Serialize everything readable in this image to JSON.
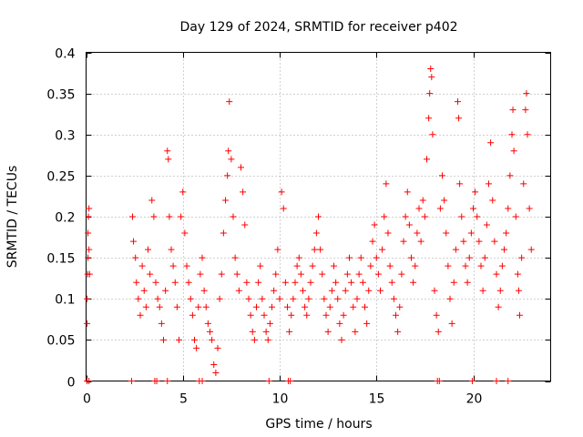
{
  "chart_data": {
    "type": "scatter",
    "title": "Day 129 of 2024, SRMTID for receiver p402",
    "xlabel": "GPS time / hours",
    "ylabel": "SRMTID / TECUs",
    "xlim": [
      0,
      24
    ],
    "ylim": [
      0,
      0.4
    ],
    "x_ticks": [
      0,
      5,
      10,
      15,
      20
    ],
    "x_tick_labels": [
      "0",
      "5",
      "10",
      "15",
      "20"
    ],
    "y_ticks": [
      0,
      0.05,
      0.1,
      0.15,
      0.2,
      0.25,
      0.3,
      0.35,
      0.4
    ],
    "y_tick_labels": [
      "0",
      "0.05",
      "0.1",
      "0.15",
      "0.2",
      "0.25",
      "0.3",
      "0.35",
      "0.4"
    ],
    "grid": true,
    "marker": "+",
    "color": "#ff0000",
    "series": [
      {
        "name": "SRMTID",
        "points": [
          [
            0.05,
            0.07
          ],
          [
            0.05,
            0.1
          ],
          [
            0.08,
            0.13
          ],
          [
            0.1,
            0.15
          ],
          [
            0.1,
            0.18
          ],
          [
            0.12,
            0.2
          ],
          [
            0.15,
            0.21
          ],
          [
            0.15,
            0.16
          ],
          [
            0.18,
            0.13
          ],
          [
            2.4,
            0.2
          ],
          [
            2.45,
            0.17
          ],
          [
            2.55,
            0.15
          ],
          [
            2.6,
            0.12
          ],
          [
            2.7,
            0.1
          ],
          [
            2.8,
            0.08
          ],
          [
            2.9,
            0.14
          ],
          [
            3.0,
            0.11
          ],
          [
            3.1,
            0.09
          ],
          [
            3.2,
            0.16
          ],
          [
            3.3,
            0.13
          ],
          [
            3.4,
            0.22
          ],
          [
            3.5,
            0.2
          ],
          [
            3.6,
            0.12
          ],
          [
            3.7,
            0.1
          ],
          [
            3.8,
            0.09
          ],
          [
            3.9,
            0.07
          ],
          [
            4.0,
            0.05
          ],
          [
            4.1,
            0.11
          ],
          [
            4.2,
            0.28
          ],
          [
            4.25,
            0.27
          ],
          [
            4.3,
            0.2
          ],
          [
            4.4,
            0.16
          ],
          [
            4.5,
            0.14
          ],
          [
            4.6,
            0.12
          ],
          [
            4.7,
            0.09
          ],
          [
            4.8,
            0.05
          ],
          [
            4.9,
            0.2
          ],
          [
            5.0,
            0.23
          ],
          [
            5.1,
            0.18
          ],
          [
            5.2,
            0.14
          ],
          [
            5.3,
            0.12
          ],
          [
            5.4,
            0.1
          ],
          [
            5.5,
            0.08
          ],
          [
            5.6,
            0.05
          ],
          [
            5.7,
            0.04
          ],
          [
            5.8,
            0.09
          ],
          [
            5.9,
            0.13
          ],
          [
            6.0,
            0.15
          ],
          [
            6.1,
            0.11
          ],
          [
            6.2,
            0.09
          ],
          [
            6.3,
            0.07
          ],
          [
            6.4,
            0.06
          ],
          [
            6.5,
            0.05
          ],
          [
            6.6,
            0.02
          ],
          [
            6.7,
            0.01
          ],
          [
            6.8,
            0.04
          ],
          [
            6.9,
            0.1
          ],
          [
            7.0,
            0.13
          ],
          [
            7.1,
            0.18
          ],
          [
            7.2,
            0.22
          ],
          [
            7.3,
            0.25
          ],
          [
            7.35,
            0.28
          ],
          [
            7.4,
            0.34
          ],
          [
            7.5,
            0.27
          ],
          [
            7.6,
            0.2
          ],
          [
            7.7,
            0.15
          ],
          [
            7.8,
            0.13
          ],
          [
            7.9,
            0.11
          ],
          [
            8.0,
            0.26
          ],
          [
            8.1,
            0.23
          ],
          [
            8.2,
            0.19
          ],
          [
            8.3,
            0.12
          ],
          [
            8.4,
            0.1
          ],
          [
            8.5,
            0.08
          ],
          [
            8.6,
            0.06
          ],
          [
            8.7,
            0.05
          ],
          [
            8.8,
            0.09
          ],
          [
            8.9,
            0.12
          ],
          [
            9.0,
            0.14
          ],
          [
            9.1,
            0.1
          ],
          [
            9.2,
            0.08
          ],
          [
            9.3,
            0.06
          ],
          [
            9.4,
            0.05
          ],
          [
            9.5,
            0.07
          ],
          [
            9.6,
            0.09
          ],
          [
            9.7,
            0.11
          ],
          [
            9.8,
            0.13
          ],
          [
            9.9,
            0.16
          ],
          [
            10.0,
            0.1
          ],
          [
            10.1,
            0.23
          ],
          [
            10.2,
            0.21
          ],
          [
            10.3,
            0.12
          ],
          [
            10.4,
            0.09
          ],
          [
            10.5,
            0.06
          ],
          [
            10.6,
            0.08
          ],
          [
            10.7,
            0.1
          ],
          [
            10.8,
            0.12
          ],
          [
            10.9,
            0.14
          ],
          [
            11.0,
            0.15
          ],
          [
            11.1,
            0.13
          ],
          [
            11.2,
            0.11
          ],
          [
            11.3,
            0.09
          ],
          [
            11.4,
            0.08
          ],
          [
            11.5,
            0.1
          ],
          [
            11.6,
            0.12
          ],
          [
            11.7,
            0.14
          ],
          [
            11.8,
            0.16
          ],
          [
            11.9,
            0.18
          ],
          [
            12.0,
            0.2
          ],
          [
            12.1,
            0.16
          ],
          [
            12.2,
            0.13
          ],
          [
            12.3,
            0.1
          ],
          [
            12.4,
            0.08
          ],
          [
            12.5,
            0.06
          ],
          [
            12.6,
            0.09
          ],
          [
            12.7,
            0.11
          ],
          [
            12.8,
            0.14
          ],
          [
            12.9,
            0.12
          ],
          [
            13.0,
            0.1
          ],
          [
            13.1,
            0.07
          ],
          [
            13.2,
            0.05
          ],
          [
            13.3,
            0.08
          ],
          [
            13.4,
            0.11
          ],
          [
            13.5,
            0.13
          ],
          [
            13.6,
            0.15
          ],
          [
            13.7,
            0.12
          ],
          [
            13.8,
            0.09
          ],
          [
            13.9,
            0.06
          ],
          [
            14.0,
            0.1
          ],
          [
            14.1,
            0.13
          ],
          [
            14.2,
            0.15
          ],
          [
            14.3,
            0.12
          ],
          [
            14.4,
            0.09
          ],
          [
            14.5,
            0.07
          ],
          [
            14.6,
            0.11
          ],
          [
            14.7,
            0.14
          ],
          [
            14.8,
            0.17
          ],
          [
            14.9,
            0.19
          ],
          [
            15.0,
            0.15
          ],
          [
            15.1,
            0.13
          ],
          [
            15.2,
            0.11
          ],
          [
            15.3,
            0.16
          ],
          [
            15.4,
            0.2
          ],
          [
            15.5,
            0.24
          ],
          [
            15.6,
            0.18
          ],
          [
            15.7,
            0.14
          ],
          [
            15.8,
            0.12
          ],
          [
            15.9,
            0.1
          ],
          [
            16.0,
            0.08
          ],
          [
            16.1,
            0.06
          ],
          [
            16.2,
            0.09
          ],
          [
            16.3,
            0.13
          ],
          [
            16.4,
            0.17
          ],
          [
            16.5,
            0.2
          ],
          [
            16.6,
            0.23
          ],
          [
            16.7,
            0.19
          ],
          [
            16.8,
            0.15
          ],
          [
            16.9,
            0.12
          ],
          [
            17.0,
            0.14
          ],
          [
            17.1,
            0.18
          ],
          [
            17.2,
            0.21
          ],
          [
            17.3,
            0.17
          ],
          [
            17.4,
            0.22
          ],
          [
            17.5,
            0.2
          ],
          [
            17.6,
            0.27
          ],
          [
            17.7,
            0.32
          ],
          [
            17.75,
            0.35
          ],
          [
            17.8,
            0.38
          ],
          [
            17.85,
            0.37
          ],
          [
            17.9,
            0.3
          ],
          [
            18.0,
            0.11
          ],
          [
            18.1,
            0.08
          ],
          [
            18.2,
            0.06
          ],
          [
            18.3,
            0.21
          ],
          [
            18.4,
            0.25
          ],
          [
            18.5,
            0.22
          ],
          [
            18.6,
            0.18
          ],
          [
            18.7,
            0.14
          ],
          [
            18.8,
            0.1
          ],
          [
            18.9,
            0.07
          ],
          [
            19.0,
            0.12
          ],
          [
            19.1,
            0.16
          ],
          [
            19.2,
            0.34
          ],
          [
            19.25,
            0.32
          ],
          [
            19.3,
            0.24
          ],
          [
            19.4,
            0.2
          ],
          [
            19.5,
            0.17
          ],
          [
            19.6,
            0.14
          ],
          [
            19.7,
            0.12
          ],
          [
            19.8,
            0.15
          ],
          [
            19.9,
            0.18
          ],
          [
            20.0,
            0.21
          ],
          [
            20.1,
            0.23
          ],
          [
            20.2,
            0.2
          ],
          [
            20.3,
            0.17
          ],
          [
            20.4,
            0.14
          ],
          [
            20.5,
            0.11
          ],
          [
            20.6,
            0.15
          ],
          [
            20.7,
            0.19
          ],
          [
            20.8,
            0.24
          ],
          [
            20.9,
            0.29
          ],
          [
            21.0,
            0.22
          ],
          [
            21.1,
            0.17
          ],
          [
            21.2,
            0.13
          ],
          [
            21.3,
            0.09
          ],
          [
            21.4,
            0.11
          ],
          [
            21.5,
            0.14
          ],
          [
            21.6,
            0.16
          ],
          [
            21.7,
            0.18
          ],
          [
            21.8,
            0.21
          ],
          [
            21.9,
            0.25
          ],
          [
            22.0,
            0.3
          ],
          [
            22.05,
            0.33
          ],
          [
            22.1,
            0.28
          ],
          [
            22.2,
            0.2
          ],
          [
            22.3,
            0.13
          ],
          [
            22.35,
            0.11
          ],
          [
            22.4,
            0.08
          ],
          [
            22.5,
            0.15
          ],
          [
            22.6,
            0.24
          ],
          [
            22.7,
            0.33
          ],
          [
            22.75,
            0.35
          ],
          [
            22.8,
            0.3
          ],
          [
            22.9,
            0.21
          ],
          [
            23.0,
            0.16
          ]
        ]
      }
    ],
    "zero_markers_x": [
      0.05,
      0.15,
      2.35,
      3.55,
      3.65,
      4.2,
      5.85,
      6.0,
      9.45,
      10.45,
      10.55,
      18.15,
      18.25,
      19.95,
      21.2,
      21.8
    ]
  }
}
